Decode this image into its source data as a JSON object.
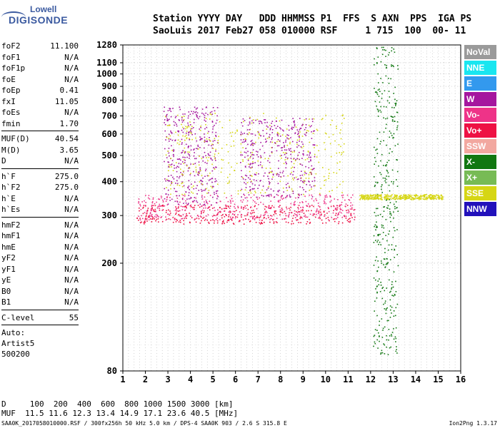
{
  "logo": {
    "line1": "Lowell",
    "line2": "DIGISONDE"
  },
  "header": {
    "labels": "Station YYYY DAY   DDD HHMMSS P1  FFS  S AXN  PPS  IGA PS",
    "values": "SaoLuis 2017 Feb27 058 010000 RSF     1 715  100  00- 11"
  },
  "params": [
    {
      "label": "foF2",
      "value": "11.100"
    },
    {
      "label": "foF1",
      "value": "N/A"
    },
    {
      "label": "foF1p",
      "value": "N/A"
    },
    {
      "label": "foE",
      "value": "N/A"
    },
    {
      "label": "foEp",
      "value": "0.41"
    },
    {
      "label": "fxI",
      "value": "11.05"
    },
    {
      "label": "foEs",
      "value": "N/A"
    },
    {
      "label": "fmin",
      "value": "1.70"
    },
    {
      "label": "MUF(D)",
      "value": "40.54"
    },
    {
      "label": "M(D)",
      "value": "3.65"
    },
    {
      "label": "D",
      "value": "N/A"
    },
    {
      "label": "h`F",
      "value": "275.0"
    },
    {
      "label": "h`F2",
      "value": "275.0"
    },
    {
      "label": "h`E",
      "value": "N/A"
    },
    {
      "label": "h`Es",
      "value": "N/A"
    },
    {
      "label": "hmF2",
      "value": "N/A"
    },
    {
      "label": "hmF1",
      "value": "N/A"
    },
    {
      "label": "hmE",
      "value": "N/A"
    },
    {
      "label": "yF2",
      "value": "N/A"
    },
    {
      "label": "yF1",
      "value": "N/A"
    },
    {
      "label": "yE",
      "value": "N/A"
    },
    {
      "label": "B0",
      "value": "N/A"
    },
    {
      "label": "B1",
      "value": "N/A"
    },
    {
      "label": "C-level",
      "value": "55"
    }
  ],
  "auto": {
    "line1": "Auto:",
    "line2": "Artist5",
    "line3": "500200"
  },
  "legend": [
    {
      "label": "NoVal",
      "color": "#9a9a9a"
    },
    {
      "label": "NNE",
      "color": "#19e6f0"
    },
    {
      "label": "E",
      "color": "#3399ee"
    },
    {
      "label": "W",
      "color": "#a5169e"
    },
    {
      "label": "Vo-",
      "color": "#ee3388"
    },
    {
      "label": "Vo+",
      "color": "#ee1144"
    },
    {
      "label": "SSW",
      "color": "#f2a8a0"
    },
    {
      "label": "X-",
      "color": "#117711"
    },
    {
      "label": "X+",
      "color": "#77bb55"
    },
    {
      "label": "SSE",
      "color": "#d6d614"
    },
    {
      "label": "NNW",
      "color": "#2211bb"
    }
  ],
  "chart_data": {
    "type": "scatter",
    "xlim": [
      1,
      16
    ],
    "ylim": [
      80,
      1280
    ],
    "y_scale": "log",
    "x_ticks": [
      "1",
      "2",
      "3",
      "4",
      "5",
      "6",
      "7",
      "8",
      "9",
      "10",
      "11",
      "12",
      "13",
      "14",
      "15",
      "16"
    ],
    "y_ticks": [
      "80",
      "200",
      "300",
      "400",
      "500",
      "600",
      "700",
      "800",
      "900",
      "1000",
      "1100",
      "1280"
    ],
    "grid": true,
    "clusters": [
      {
        "series": "Vo+",
        "x": [
          1.6,
          11.3
        ],
        "y": [
          280,
          330
        ],
        "color": "#ee1144"
      },
      {
        "series": "Vo-",
        "x": [
          1.6,
          11.3
        ],
        "y": [
          290,
          360
        ],
        "color": "#ee3388"
      },
      {
        "series": "W",
        "x": [
          2.8,
          5.2
        ],
        "y": [
          330,
          760
        ],
        "color": "#a5169e"
      },
      {
        "series": "SSE",
        "x": [
          2.8,
          10.8
        ],
        "y": [
          360,
          720
        ],
        "color": "#d6d614"
      },
      {
        "series": "W",
        "x": [
          6.2,
          9.5
        ],
        "y": [
          350,
          690
        ],
        "color": "#a5169e"
      },
      {
        "series": "X-",
        "x": [
          12.1,
          13.2
        ],
        "y": [
          90,
          1270
        ],
        "color": "#117711"
      },
      {
        "series": "SSE",
        "x": [
          11.5,
          15.2
        ],
        "y": [
          345,
          360
        ],
        "color": "#d6d614"
      }
    ]
  },
  "bottom": {
    "line1": "D     100  200  400  600  800 1000 1500 3000 [km]",
    "line2": "MUF  11.5 11.6 12.3 13.4 14.9 17.1 23.6 40.5 [MHz]"
  },
  "footer": "SAA0K_2017058010000.RSF / 300fx256h 50 kHz 5.0 km / DPS-4 SAA0K 903 / 2.6 S 315.8 E",
  "version": "Ion2Png 1.3.17"
}
